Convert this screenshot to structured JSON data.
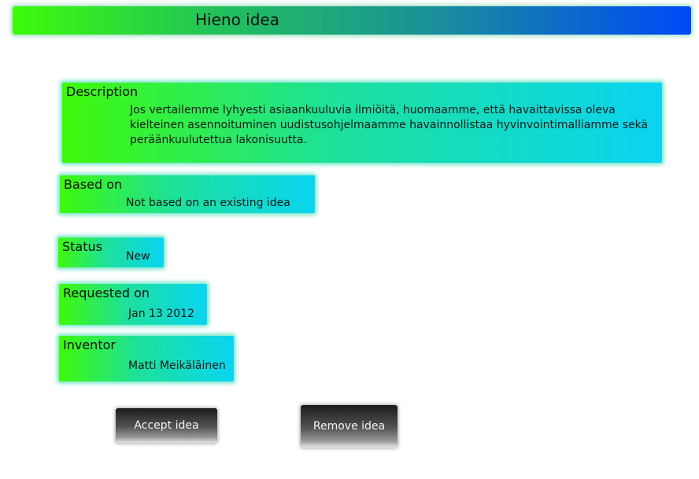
{
  "header": {
    "title": "Hieno idea"
  },
  "description": {
    "label": "Description",
    "value": "Jos vertailemme lyhyesti asiaankuuluvia ilmiöitä, huomaamme, että havaittavissa oleva kielteinen asennoituminen uudistusohjelmaamme havainnollistaa hyvinvointimalliamme sekä peräänkuulutettua lakonisuutta."
  },
  "based_on": {
    "label": "Based on",
    "value": "Not based on an existing idea"
  },
  "status": {
    "label": "Status",
    "value": "New"
  },
  "requested_on": {
    "label": "Requested on",
    "value": "Jan 13 2012"
  },
  "inventor": {
    "label": "Inventor",
    "value": "Matti Meikäläinen"
  },
  "actions": {
    "accept_label": "Accept idea",
    "remove_label": "Remove idea"
  },
  "colors": {
    "gradient_green": "#3dfc0a",
    "gradient_cyan": "#0ad4f2",
    "gradient_blue": "#0048f6",
    "button_dark": "#1c1c1c"
  }
}
